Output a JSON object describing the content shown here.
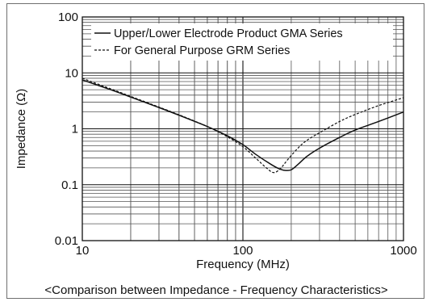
{
  "chart_data": {
    "type": "line",
    "xlabel": "Frequency (MHz)",
    "ylabel": "Impedance (Ω)",
    "caption": "<Comparison between Impedance - Frequency Characteristics>",
    "x_scale": "log",
    "y_scale": "log",
    "xlim": [
      10,
      1000
    ],
    "ylim": [
      0.01,
      100
    ],
    "x_ticks": [
      10,
      100,
      1000
    ],
    "x_tick_labels": [
      "10",
      "100",
      "1000"
    ],
    "y_ticks": [
      0.01,
      0.1,
      1,
      10,
      100
    ],
    "y_tick_labels": [
      "0.01",
      "0.1",
      "1",
      "10",
      "100"
    ],
    "grid": true,
    "legend_position": "top-right",
    "series": [
      {
        "name": "Upper/Lower Electrode Product GMA Series",
        "style": "solid",
        "color": "#111111",
        "x": [
          10,
          15,
          20,
          30,
          40,
          60,
          80,
          100,
          120,
          150,
          170,
          185,
          200,
          220,
          250,
          300,
          400,
          500,
          700,
          1000
        ],
        "y": [
          7.5,
          5.0,
          3.7,
          2.4,
          1.75,
          1.1,
          0.75,
          0.52,
          0.35,
          0.23,
          0.19,
          0.18,
          0.185,
          0.23,
          0.32,
          0.45,
          0.7,
          0.95,
          1.35,
          2.0
        ]
      },
      {
        "name": "For General Purpose GRM Series",
        "style": "dashed",
        "color": "#111111",
        "x": [
          10,
          15,
          20,
          30,
          40,
          60,
          80,
          100,
          120,
          140,
          155,
          170,
          190,
          220,
          250,
          300,
          400,
          500,
          700,
          1000
        ],
        "y": [
          8.0,
          5.2,
          3.8,
          2.45,
          1.78,
          1.1,
          0.72,
          0.48,
          0.3,
          0.2,
          0.165,
          0.19,
          0.28,
          0.45,
          0.62,
          0.85,
          1.35,
          1.8,
          2.6,
          3.6
        ]
      }
    ]
  }
}
